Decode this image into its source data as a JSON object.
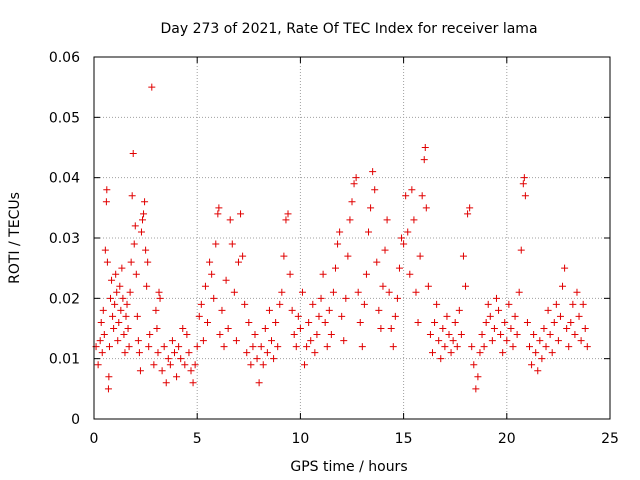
{
  "chart_data": {
    "type": "scatter",
    "title": "Day 273 of 2021, Rate Of TEC Index for receiver lama",
    "xlabel": "GPS time / hours",
    "ylabel": "ROTI / TECUs",
    "xlim": [
      0,
      25
    ],
    "ylim": [
      0,
      0.06
    ],
    "x_ticks": [
      {
        "value": 0,
        "label": "0"
      },
      {
        "value": 5,
        "label": "5"
      },
      {
        "value": 10,
        "label": "10"
      },
      {
        "value": 15,
        "label": "15"
      },
      {
        "value": 20,
        "label": "20"
      },
      {
        "value": 25,
        "label": "25"
      }
    ],
    "y_ticks": [
      {
        "value": 0,
        "label": "0"
      },
      {
        "value": 0.01,
        "label": "0.01"
      },
      {
        "value": 0.02,
        "label": "0.02"
      },
      {
        "value": 0.03,
        "label": "0.03"
      },
      {
        "value": 0.04,
        "label": "0.04"
      },
      {
        "value": 0.05,
        "label": "0.05"
      },
      {
        "value": 0.06,
        "label": "0.06"
      }
    ],
    "grid": true,
    "marker": "+",
    "marker_color": "#e00000",
    "series": [
      {
        "points": [
          [
            0.1,
            0.012
          ],
          [
            0.2,
            0.009
          ],
          [
            0.3,
            0.013
          ],
          [
            0.35,
            0.016
          ],
          [
            0.4,
            0.011
          ],
          [
            0.45,
            0.018
          ],
          [
            0.5,
            0.014
          ],
          [
            0.55,
            0.028
          ],
          [
            0.6,
            0.036
          ],
          [
            0.62,
            0.038
          ],
          [
            0.65,
            0.026
          ],
          [
            0.7,
            0.005
          ],
          [
            0.72,
            0.007
          ],
          [
            0.75,
            0.012
          ],
          [
            0.8,
            0.02
          ],
          [
            0.85,
            0.023
          ],
          [
            0.9,
            0.017
          ],
          [
            0.95,
            0.015
          ],
          [
            1.0,
            0.019
          ],
          [
            1.05,
            0.024
          ],
          [
            1.1,
            0.021
          ],
          [
            1.15,
            0.013
          ],
          [
            1.2,
            0.016
          ],
          [
            1.25,
            0.022
          ],
          [
            1.3,
            0.018
          ],
          [
            1.35,
            0.025
          ],
          [
            1.4,
            0.02
          ],
          [
            1.45,
            0.014
          ],
          [
            1.5,
            0.011
          ],
          [
            1.55,
            0.017
          ],
          [
            1.6,
            0.019
          ],
          [
            1.65,
            0.015
          ],
          [
            1.7,
            0.012
          ],
          [
            1.75,
            0.021
          ],
          [
            1.8,
            0.026
          ],
          [
            1.85,
            0.037
          ],
          [
            1.9,
            0.044
          ],
          [
            1.95,
            0.029
          ],
          [
            2.0,
            0.032
          ],
          [
            2.05,
            0.024
          ],
          [
            2.1,
            0.017
          ],
          [
            2.15,
            0.013
          ],
          [
            2.2,
            0.011
          ],
          [
            2.25,
            0.008
          ],
          [
            2.3,
            0.031
          ],
          [
            2.35,
            0.033
          ],
          [
            2.4,
            0.034
          ],
          [
            2.45,
            0.036
          ],
          [
            2.5,
            0.028
          ],
          [
            2.55,
            0.022
          ],
          [
            2.6,
            0.026
          ],
          [
            2.65,
            0.012
          ],
          [
            2.7,
            0.014
          ],
          [
            2.8,
            0.055
          ],
          [
            2.9,
            0.009
          ],
          [
            3.0,
            0.018
          ],
          [
            3.05,
            0.015
          ],
          [
            3.1,
            0.011
          ],
          [
            3.15,
            0.021
          ],
          [
            3.2,
            0.02
          ],
          [
            3.3,
            0.008
          ],
          [
            3.4,
            0.012
          ],
          [
            3.5,
            0.006
          ],
          [
            3.6,
            0.01
          ],
          [
            3.7,
            0.009
          ],
          [
            3.8,
            0.013
          ],
          [
            3.9,
            0.011
          ],
          [
            4.0,
            0.007
          ],
          [
            4.1,
            0.012
          ],
          [
            4.2,
            0.01
          ],
          [
            4.3,
            0.015
          ],
          [
            4.4,
            0.009
          ],
          [
            4.5,
            0.014
          ],
          [
            4.6,
            0.011
          ],
          [
            4.7,
            0.008
          ],
          [
            4.8,
            0.006
          ],
          [
            4.9,
            0.009
          ],
          [
            5.0,
            0.012
          ],
          [
            5.1,
            0.017
          ],
          [
            5.2,
            0.019
          ],
          [
            5.3,
            0.013
          ],
          [
            5.4,
            0.022
          ],
          [
            5.5,
            0.016
          ],
          [
            5.6,
            0.026
          ],
          [
            5.7,
            0.024
          ],
          [
            5.8,
            0.02
          ],
          [
            5.9,
            0.029
          ],
          [
            6.0,
            0.034
          ],
          [
            6.05,
            0.035
          ],
          [
            6.1,
            0.014
          ],
          [
            6.2,
            0.018
          ],
          [
            6.3,
            0.012
          ],
          [
            6.4,
            0.023
          ],
          [
            6.5,
            0.015
          ],
          [
            6.6,
            0.033
          ],
          [
            6.7,
            0.029
          ],
          [
            6.8,
            0.021
          ],
          [
            6.9,
            0.013
          ],
          [
            7.0,
            0.026
          ],
          [
            7.1,
            0.034
          ],
          [
            7.2,
            0.027
          ],
          [
            7.3,
            0.019
          ],
          [
            7.4,
            0.011
          ],
          [
            7.5,
            0.016
          ],
          [
            7.6,
            0.009
          ],
          [
            7.7,
            0.012
          ],
          [
            7.8,
            0.014
          ],
          [
            7.9,
            0.01
          ],
          [
            8.0,
            0.006
          ],
          [
            8.1,
            0.012
          ],
          [
            8.2,
            0.009
          ],
          [
            8.3,
            0.015
          ],
          [
            8.4,
            0.011
          ],
          [
            8.5,
            0.018
          ],
          [
            8.6,
            0.013
          ],
          [
            8.7,
            0.01
          ],
          [
            8.8,
            0.016
          ],
          [
            8.9,
            0.012
          ],
          [
            9.0,
            0.019
          ],
          [
            9.1,
            0.021
          ],
          [
            9.2,
            0.027
          ],
          [
            9.3,
            0.033
          ],
          [
            9.4,
            0.034
          ],
          [
            9.5,
            0.024
          ],
          [
            9.6,
            0.018
          ],
          [
            9.7,
            0.014
          ],
          [
            9.8,
            0.012
          ],
          [
            9.9,
            0.017
          ],
          [
            10.0,
            0.015
          ],
          [
            10.1,
            0.021
          ],
          [
            10.2,
            0.009
          ],
          [
            10.3,
            0.012
          ],
          [
            10.4,
            0.016
          ],
          [
            10.5,
            0.013
          ],
          [
            10.6,
            0.019
          ],
          [
            10.7,
            0.011
          ],
          [
            10.8,
            0.014
          ],
          [
            10.9,
            0.017
          ],
          [
            11.0,
            0.02
          ],
          [
            11.1,
            0.024
          ],
          [
            11.2,
            0.016
          ],
          [
            11.3,
            0.012
          ],
          [
            11.4,
            0.018
          ],
          [
            11.5,
            0.014
          ],
          [
            11.6,
            0.021
          ],
          [
            11.7,
            0.025
          ],
          [
            11.8,
            0.029
          ],
          [
            11.9,
            0.031
          ],
          [
            12.0,
            0.017
          ],
          [
            12.1,
            0.013
          ],
          [
            12.2,
            0.02
          ],
          [
            12.3,
            0.027
          ],
          [
            12.4,
            0.033
          ],
          [
            12.5,
            0.036
          ],
          [
            12.6,
            0.039
          ],
          [
            12.7,
            0.04
          ],
          [
            12.8,
            0.021
          ],
          [
            12.9,
            0.016
          ],
          [
            13.0,
            0.012
          ],
          [
            13.1,
            0.019
          ],
          [
            13.2,
            0.024
          ],
          [
            13.3,
            0.031
          ],
          [
            13.4,
            0.035
          ],
          [
            13.5,
            0.041
          ],
          [
            13.6,
            0.038
          ],
          [
            13.7,
            0.026
          ],
          [
            13.8,
            0.018
          ],
          [
            13.9,
            0.015
          ],
          [
            14.0,
            0.022
          ],
          [
            14.1,
            0.028
          ],
          [
            14.2,
            0.033
          ],
          [
            14.3,
            0.021
          ],
          [
            14.4,
            0.015
          ],
          [
            14.5,
            0.012
          ],
          [
            14.6,
            0.017
          ],
          [
            14.7,
            0.02
          ],
          [
            14.8,
            0.025
          ],
          [
            14.9,
            0.03
          ],
          [
            15.0,
            0.029
          ],
          [
            15.1,
            0.037
          ],
          [
            15.2,
            0.031
          ],
          [
            15.3,
            0.024
          ],
          [
            15.4,
            0.038
          ],
          [
            15.5,
            0.033
          ],
          [
            15.6,
            0.021
          ],
          [
            15.7,
            0.016
          ],
          [
            15.8,
            0.027
          ],
          [
            15.9,
            0.037
          ],
          [
            16.0,
            0.043
          ],
          [
            16.05,
            0.045
          ],
          [
            16.1,
            0.035
          ],
          [
            16.2,
            0.022
          ],
          [
            16.3,
            0.014
          ],
          [
            16.4,
            0.011
          ],
          [
            16.5,
            0.016
          ],
          [
            16.6,
            0.019
          ],
          [
            16.7,
            0.013
          ],
          [
            16.8,
            0.01
          ],
          [
            16.9,
            0.015
          ],
          [
            17.0,
            0.012
          ],
          [
            17.1,
            0.017
          ],
          [
            17.2,
            0.014
          ],
          [
            17.3,
            0.011
          ],
          [
            17.4,
            0.013
          ],
          [
            17.5,
            0.016
          ],
          [
            17.6,
            0.012
          ],
          [
            17.7,
            0.018
          ],
          [
            17.8,
            0.014
          ],
          [
            17.9,
            0.027
          ],
          [
            18.0,
            0.022
          ],
          [
            18.1,
            0.034
          ],
          [
            18.2,
            0.035
          ],
          [
            18.3,
            0.012
          ],
          [
            18.4,
            0.009
          ],
          [
            18.5,
            0.005
          ],
          [
            18.6,
            0.007
          ],
          [
            18.7,
            0.011
          ],
          [
            18.8,
            0.014
          ],
          [
            18.9,
            0.012
          ],
          [
            19.0,
            0.016
          ],
          [
            19.1,
            0.019
          ],
          [
            19.2,
            0.017
          ],
          [
            19.3,
            0.013
          ],
          [
            19.4,
            0.015
          ],
          [
            19.5,
            0.02
          ],
          [
            19.6,
            0.018
          ],
          [
            19.7,
            0.014
          ],
          [
            19.8,
            0.011
          ],
          [
            19.9,
            0.016
          ],
          [
            20.0,
            0.013
          ],
          [
            20.1,
            0.019
          ],
          [
            20.2,
            0.015
          ],
          [
            20.3,
            0.012
          ],
          [
            20.4,
            0.017
          ],
          [
            20.5,
            0.014
          ],
          [
            20.6,
            0.021
          ],
          [
            20.7,
            0.028
          ],
          [
            20.8,
            0.039
          ],
          [
            20.85,
            0.04
          ],
          [
            20.9,
            0.037
          ],
          [
            21.0,
            0.016
          ],
          [
            21.1,
            0.012
          ],
          [
            21.2,
            0.009
          ],
          [
            21.3,
            0.014
          ],
          [
            21.4,
            0.011
          ],
          [
            21.5,
            0.008
          ],
          [
            21.6,
            0.013
          ],
          [
            21.7,
            0.01
          ],
          [
            21.8,
            0.015
          ],
          [
            21.9,
            0.012
          ],
          [
            22.0,
            0.018
          ],
          [
            22.1,
            0.014
          ],
          [
            22.2,
            0.011
          ],
          [
            22.3,
            0.016
          ],
          [
            22.4,
            0.019
          ],
          [
            22.5,
            0.013
          ],
          [
            22.6,
            0.017
          ],
          [
            22.7,
            0.022
          ],
          [
            22.8,
            0.025
          ],
          [
            22.9,
            0.015
          ],
          [
            23.0,
            0.012
          ],
          [
            23.1,
            0.016
          ],
          [
            23.2,
            0.019
          ],
          [
            23.3,
            0.014
          ],
          [
            23.4,
            0.021
          ],
          [
            23.5,
            0.017
          ],
          [
            23.6,
            0.013
          ],
          [
            23.7,
            0.019
          ],
          [
            23.8,
            0.015
          ],
          [
            23.9,
            0.012
          ]
        ]
      }
    ]
  }
}
